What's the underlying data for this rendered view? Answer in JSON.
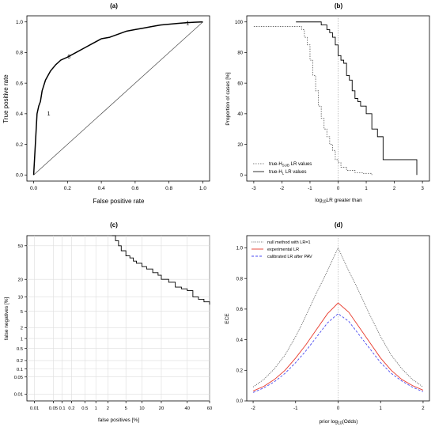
{
  "chart_data": [
    {
      "id": "a",
      "panel_label": "(a)",
      "type": "line",
      "xlabel": "False positive rate",
      "ylabel": "True positive rate",
      "xlim": [
        0,
        1
      ],
      "ylim": [
        0,
        1
      ],
      "xticks": [
        "0.0",
        "0.2",
        "0.4",
        "0.6",
        "0.8",
        "1.0"
      ],
      "yticks": [
        "0.0",
        "0.2",
        "0.4",
        "0.6",
        "0.8",
        "1.0"
      ],
      "grid": false,
      "series": [
        {
          "x": [
            0,
            0.01,
            0.02,
            0.03,
            0.04,
            0.05,
            0.07,
            0.1,
            0.13,
            0.16,
            0.2,
            0.25,
            0.3,
            0.35,
            0.4,
            0.45,
            0.5,
            0.55,
            0.6,
            0.65,
            0.7,
            0.75,
            0.8,
            0.85,
            0.9,
            0.95,
            1.0
          ],
          "y": [
            0,
            0.2,
            0.4,
            0.45,
            0.48,
            0.55,
            0.62,
            0.68,
            0.72,
            0.75,
            0.77,
            0.8,
            0.83,
            0.86,
            0.89,
            0.9,
            0.92,
            0.94,
            0.95,
            0.96,
            0.97,
            0.98,
            0.985,
            0.99,
            0.995,
            0.998,
            1.0
          ]
        },
        {
          "x": [
            0,
            1
          ],
          "y": [
            0,
            1
          ]
        }
      ],
      "annotations": [
        {
          "text": "1",
          "x": 0.08,
          "y": 0.39
        },
        {
          "text": "0",
          "x": 0.2,
          "y": 0.76
        },
        {
          "text": "-1",
          "x": 0.89,
          "y": 0.98
        }
      ]
    },
    {
      "id": "b",
      "panel_label": "(b)",
      "type": "line",
      "xlabel": "log10LR greater than",
      "ylabel": "Proportion of cases [%]",
      "xlim": [
        -3,
        3
      ],
      "ylim": [
        0,
        100
      ],
      "xticks": [
        "-3",
        "-2",
        "-1",
        "0",
        "1",
        "2",
        "3"
      ],
      "yticks": [
        "0",
        "20",
        "40",
        "60",
        "80",
        "100"
      ],
      "grid": false,
      "vline_at": 0,
      "legend_position": "bottom-left",
      "series": [
        {
          "name": "true-HSUB LR values",
          "x": [
            -3,
            -1.5,
            -1.3,
            -1.2,
            -1.1,
            -1.0,
            -0.9,
            -0.8,
            -0.7,
            -0.6,
            -0.5,
            -0.4,
            -0.3,
            -0.2,
            -0.1,
            0,
            0.1,
            0.3,
            0.6,
            0.9,
            1.2
          ],
          "y": [
            97,
            97,
            95,
            90,
            85,
            75,
            65,
            55,
            45,
            37,
            30,
            25,
            20,
            16,
            10,
            8,
            5,
            3,
            1.5,
            1,
            0
          ]
        },
        {
          "name": "true-HL LR values",
          "x": [
            -1.5,
            -0.8,
            -0.6,
            -0.4,
            -0.3,
            -0.2,
            -0.1,
            0,
            0.1,
            0.2,
            0.3,
            0.4,
            0.5,
            0.6,
            0.7,
            0.8,
            1.0,
            1.2,
            1.4,
            1.6,
            2.8
          ],
          "y": [
            100,
            100,
            98,
            95,
            93,
            90,
            85,
            78,
            75,
            73,
            65,
            62,
            55,
            50,
            48,
            45,
            40,
            30,
            25,
            10,
            0
          ]
        }
      ]
    },
    {
      "id": "c",
      "panel_label": "(c)",
      "type": "line",
      "xlabel": "false positives [%]",
      "ylabel": "false negatives [%]",
      "xscale": "probit",
      "yscale": "probit",
      "xlim": [
        0.005,
        60
      ],
      "ylim": [
        0.005,
        60
      ],
      "xticks": [
        "0.01",
        "0.05",
        "0.1",
        "0.2",
        "0.5",
        "1",
        "2",
        "5",
        "10",
        "20",
        "40",
        "60"
      ],
      "yticks": [
        "0.01",
        "0.05",
        "0.1",
        "0.2",
        "0.5",
        "1",
        "2",
        "5",
        "10",
        "20",
        "50"
      ],
      "grid": true,
      "series": [
        {
          "x": [
            2.5,
            3.0,
            3.5,
            4,
            5,
            6,
            7,
            8,
            10,
            12,
            15,
            18,
            20,
            25,
            30,
            35,
            40,
            45,
            50,
            55,
            60
          ],
          "y": [
            60,
            55,
            50,
            45,
            40,
            38,
            35,
            33,
            30,
            28,
            25,
            23,
            20,
            18,
            15,
            14,
            13,
            10,
            9,
            8,
            7
          ]
        }
      ]
    },
    {
      "id": "d",
      "panel_label": "(d)",
      "type": "line",
      "xlabel": "prior log10(Odds)",
      "ylabel": "ECE",
      "xlim": [
        -2,
        2
      ],
      "ylim": [
        0,
        1
      ],
      "xticks": [
        "-2",
        "-1",
        "0",
        "1",
        "2"
      ],
      "yticks": [
        "0.0",
        "0.2",
        "0.4",
        "0.6",
        "0.8",
        "1.0"
      ],
      "grid": false,
      "vline_at": 0,
      "legend_position": "top-left",
      "series": [
        {
          "name": "null method with LR=1",
          "color": "#555555",
          "x": [
            -2,
            -1.75,
            -1.5,
            -1.25,
            -1,
            -0.75,
            -0.5,
            -0.25,
            0,
            0.25,
            0.5,
            0.75,
            1,
            1.25,
            1.5,
            1.75,
            2
          ],
          "y": [
            0.091,
            0.14,
            0.21,
            0.3,
            0.42,
            0.56,
            0.71,
            0.85,
            1.0,
            0.85,
            0.71,
            0.56,
            0.42,
            0.3,
            0.21,
            0.14,
            0.091
          ]
        },
        {
          "name": "experimental LR",
          "color": "#e8392b",
          "x": [
            -2,
            -1.75,
            -1.5,
            -1.25,
            -1,
            -0.75,
            -0.5,
            -0.25,
            0,
            0.25,
            0.5,
            0.75,
            1,
            1.25,
            1.5,
            1.75,
            2
          ],
          "y": [
            0.065,
            0.095,
            0.14,
            0.2,
            0.28,
            0.37,
            0.47,
            0.57,
            0.64,
            0.58,
            0.48,
            0.38,
            0.28,
            0.2,
            0.14,
            0.1,
            0.07
          ]
        },
        {
          "name": "calibrated LR after PAV",
          "color": "#4a4af0",
          "x": [
            -2,
            -1.75,
            -1.5,
            -1.25,
            -1,
            -0.75,
            -0.5,
            -0.25,
            0,
            0.25,
            0.5,
            0.75,
            1,
            1.25,
            1.5,
            1.75,
            2
          ],
          "y": [
            0.055,
            0.085,
            0.125,
            0.18,
            0.25,
            0.33,
            0.42,
            0.51,
            0.57,
            0.52,
            0.43,
            0.34,
            0.25,
            0.18,
            0.13,
            0.09,
            0.06
          ]
        }
      ]
    }
  ]
}
